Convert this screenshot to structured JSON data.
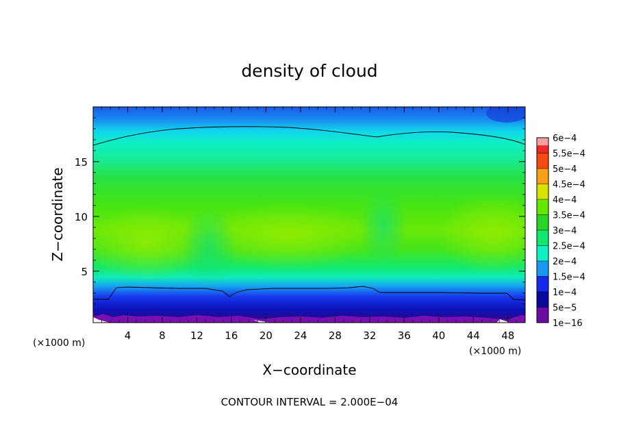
{
  "chart_data": {
    "type": "heatmap",
    "title": "density of cloud",
    "xlabel": "X−coordinate",
    "ylabel": "Z−coordinate",
    "x_unit_left": "(×1000 m)",
    "x_unit_right": "(×1000 m)",
    "footer": "CONTOUR INTERVAL = 2.000E−04",
    "xlim": [
      0,
      50
    ],
    "ylim": [
      0.3,
      20
    ],
    "x_ticks": [
      4,
      8,
      12,
      16,
      20,
      24,
      28,
      32,
      36,
      40,
      44,
      48
    ],
    "x_tick_labels": [
      "4",
      "8",
      "12",
      "16",
      "20",
      "24",
      "28",
      "32",
      "36",
      "40",
      "44",
      "48"
    ],
    "y_ticks": [
      5,
      10,
      15
    ],
    "y_tick_labels": [
      "5",
      "10",
      "15"
    ],
    "colorbar": {
      "levels": [
        {
          "label": "6e−4",
          "color": "#f7a0a0"
        },
        {
          "label": "5.5e−4",
          "color": "#f02828"
        },
        {
          "label": "5e−4",
          "color": "#f54a10"
        },
        {
          "label": "4.5e−4",
          "color": "#f8a018"
        },
        {
          "label": "4e−4",
          "color": "#d8e400"
        },
        {
          "label": "3.5e−4",
          "color": "#66e800"
        },
        {
          "label": "3e−4",
          "color": "#28d424"
        },
        {
          "label": "2.5e−4",
          "color": "#10e870"
        },
        {
          "label": "2e−4",
          "color": "#10f0c4"
        },
        {
          "label": "1.5e−4",
          "color": "#1898f0"
        },
        {
          "label": "1e−4",
          "color": "#1428ec"
        },
        {
          "label": "5e−5",
          "color": "#08089c"
        },
        {
          "label": "1e−16",
          "color": "#6a0aa0"
        }
      ]
    },
    "field_description_colors": {
      "top_layer": "#1a62ee",
      "upper": "#10f0c4",
      "middle": "#38e018",
      "core": "#80e800",
      "lower": "#10e870",
      "base": "#1428ec"
    }
  }
}
